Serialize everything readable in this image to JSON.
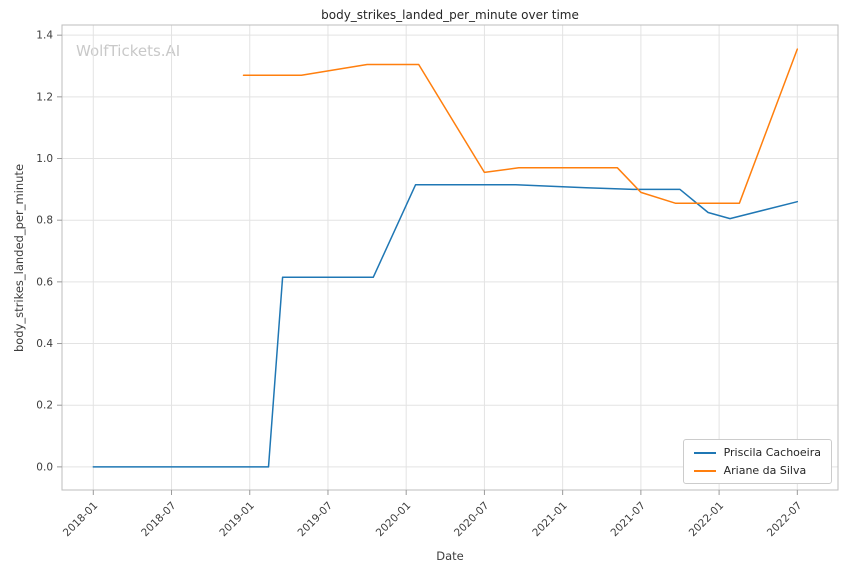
{
  "watermark": "WolfTickets.AI",
  "chart_data": {
    "type": "line",
    "title": "body_strikes_landed_per_minute over time",
    "xlabel": "Date",
    "ylabel": "body_strikes_landed_per_minute",
    "grid": true,
    "legend_position": "lower right",
    "xlim": [
      2017.8,
      2022.76
    ],
    "ylim": [
      -0.075,
      1.433
    ],
    "x_ticks": [
      {
        "v": 2018.0,
        "label": "2018-01"
      },
      {
        "v": 2018.5,
        "label": "2018-07"
      },
      {
        "v": 2019.0,
        "label": "2019-01"
      },
      {
        "v": 2019.5,
        "label": "2019-07"
      },
      {
        "v": 2020.0,
        "label": "2020-01"
      },
      {
        "v": 2020.5,
        "label": "2020-07"
      },
      {
        "v": 2021.0,
        "label": "2021-01"
      },
      {
        "v": 2021.5,
        "label": "2021-07"
      },
      {
        "v": 2022.0,
        "label": "2022-01"
      },
      {
        "v": 2022.5,
        "label": "2022-07"
      }
    ],
    "y_ticks": [
      {
        "v": 0.0,
        "label": "0.0"
      },
      {
        "v": 0.2,
        "label": "0.2"
      },
      {
        "v": 0.4,
        "label": "0.4"
      },
      {
        "v": 0.6,
        "label": "0.6"
      },
      {
        "v": 0.8,
        "label": "0.8"
      },
      {
        "v": 1.0,
        "label": "1.0"
      },
      {
        "v": 1.2,
        "label": "1.2"
      },
      {
        "v": 1.4,
        "label": "1.4"
      }
    ],
    "series": [
      {
        "name": "Priscila Cachoeira",
        "color": "#1f77b4",
        "points": [
          [
            2018.0,
            0.0
          ],
          [
            2019.12,
            0.0
          ],
          [
            2019.21,
            0.615
          ],
          [
            2019.79,
            0.615
          ],
          [
            2020.06,
            0.915
          ],
          [
            2020.7,
            0.915
          ],
          [
            2021.15,
            0.905
          ],
          [
            2021.45,
            0.9
          ],
          [
            2021.75,
            0.9
          ],
          [
            2021.93,
            0.825
          ],
          [
            2022.07,
            0.805
          ],
          [
            2022.5,
            0.86
          ]
        ]
      },
      {
        "name": "Ariane da Silva",
        "color": "#ff7f0e",
        "points": [
          [
            2018.96,
            1.27
          ],
          [
            2019.33,
            1.27
          ],
          [
            2019.75,
            1.305
          ],
          [
            2020.08,
            1.305
          ],
          [
            2020.5,
            0.955
          ],
          [
            2020.72,
            0.97
          ],
          [
            2021.35,
            0.97
          ],
          [
            2021.5,
            0.89
          ],
          [
            2021.72,
            0.855
          ],
          [
            2022.13,
            0.855
          ],
          [
            2022.5,
            1.355
          ]
        ]
      }
    ]
  }
}
